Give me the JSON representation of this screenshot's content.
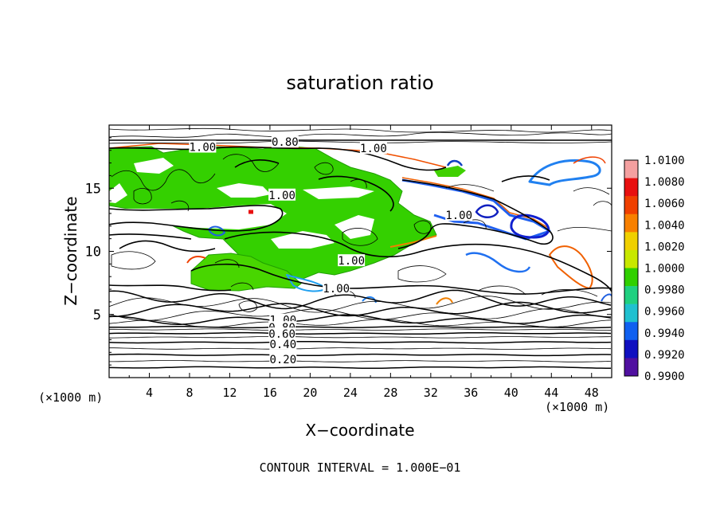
{
  "chart_data": {
    "type": "heatmap",
    "title": "saturation ratio",
    "xlabel": "X−coordinate",
    "ylabel": "Z−coordinate",
    "x_unit": "(×1000 m)",
    "y_unit": "(×1000 m)",
    "xlim": [
      0,
      50
    ],
    "ylim": [
      0,
      20
    ],
    "x_ticks": [
      "4",
      "8",
      "12",
      "16",
      "20",
      "24",
      "28",
      "32",
      "36",
      "40",
      "44",
      "48"
    ],
    "y_ticks": [
      "5",
      "10",
      "15"
    ],
    "footer": "CONTOUR INTERVAL = 1.000E−01",
    "colorbar": {
      "min": 0.99,
      "max": 1.01,
      "labels": [
        "1.0100",
        "1.0080",
        "1.0060",
        "1.0040",
        "1.0020",
        "1.0000",
        "0.9980",
        "0.9960",
        "0.9940",
        "0.9920",
        "0.9900"
      ],
      "colors": [
        "#f4a0a0",
        "#e81010",
        "#f04000",
        "#f88000",
        "#f0d000",
        "#c8e800",
        "#30d000",
        "#20d080",
        "#20c0d0",
        "#1060f0",
        "#1010c0",
        "#5010a0"
      ]
    },
    "contour_labels": [
      {
        "text": "1.00",
        "x": 9.3,
        "z": 18.2
      },
      {
        "text": "0.80",
        "x": 17.5,
        "z": 18.6
      },
      {
        "text": "1.00",
        "x": 26.3,
        "z": 18.1
      },
      {
        "text": "1.00",
        "x": 17.2,
        "z": 14.4
      },
      {
        "text": "1.00",
        "x": 34.8,
        "z": 12.8
      },
      {
        "text": "1.00",
        "x": 24.1,
        "z": 9.2
      },
      {
        "text": "1.00",
        "x": 22.6,
        "z": 7.0
      },
      {
        "text": "1.00",
        "x": 17.3,
        "z": 4.5
      },
      {
        "text": "0.80",
        "x": 17.2,
        "z": 3.9
      },
      {
        "text": "0.60",
        "x": 17.2,
        "z": 3.4
      },
      {
        "text": "0.40",
        "x": 17.3,
        "z": 2.6
      },
      {
        "text": "0.20",
        "x": 17.3,
        "z": 1.4
      }
    ],
    "lower_stack_levels_z": [
      0.8,
      1.3,
      1.8,
      2.3,
      2.8,
      3.2,
      3.5,
      3.8,
      4.0,
      4.3,
      4.6,
      5.0,
      5.4,
      5.8,
      6.2
    ]
  }
}
